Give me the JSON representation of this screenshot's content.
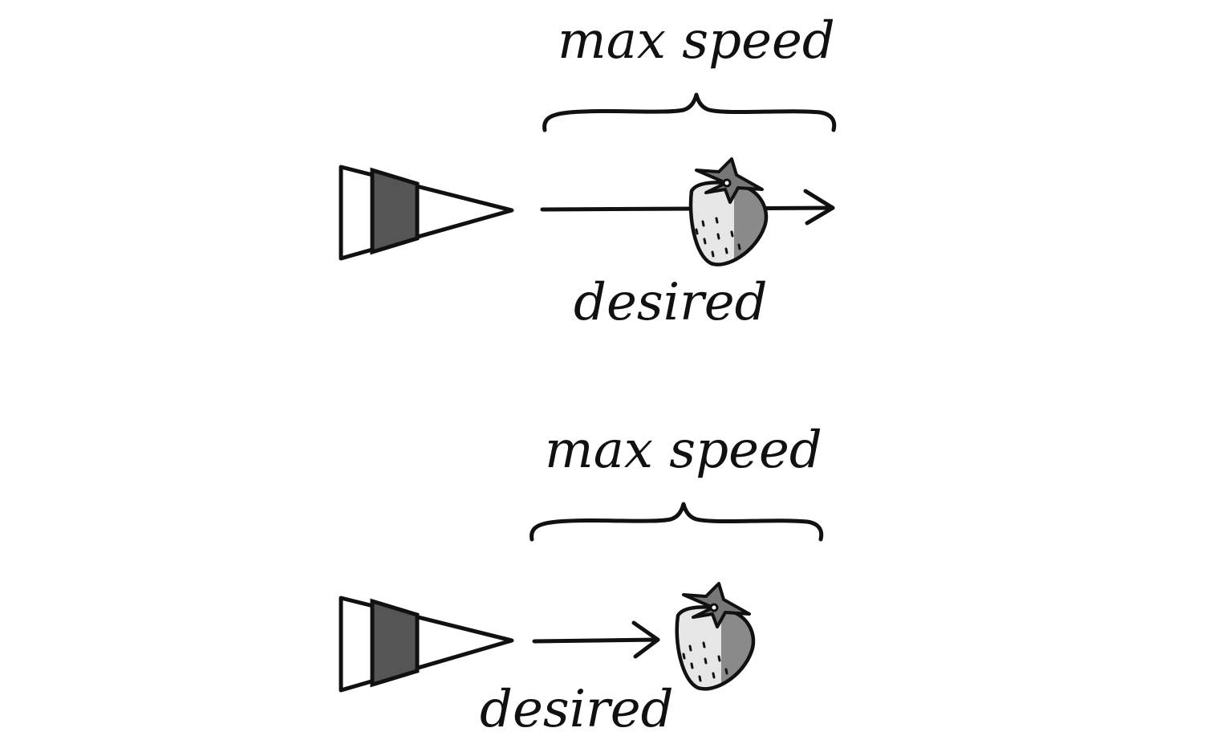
{
  "panels": [
    {
      "brace_label": "max speed",
      "vector_label": "desired"
    },
    {
      "brace_label": "max speed",
      "vector_label": "desired"
    }
  ],
  "colors": {
    "ink": "#111111",
    "ship_band": "#555555",
    "berry_light": "#e6e6e6",
    "berry_dark": "#8a8a8a",
    "leaf": "#777777"
  },
  "icons": [
    "vehicle-triangle-icon",
    "strawberry-target-icon",
    "arrow-icon",
    "curly-brace-icon"
  ]
}
